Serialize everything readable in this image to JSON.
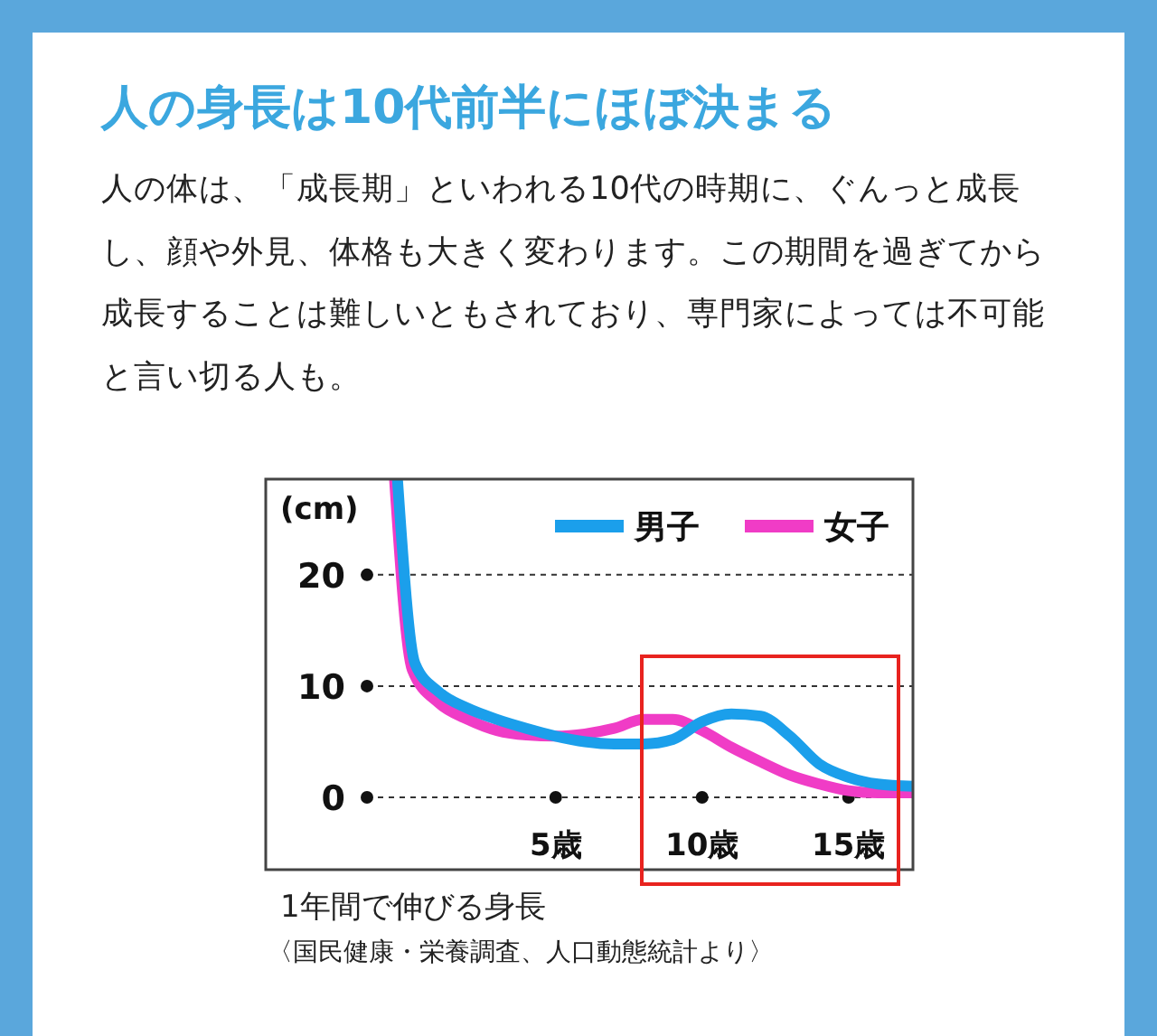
{
  "chart_data": {
    "type": "line",
    "title": "人の身長は10代前半にほぼ決まる",
    "subtitle": "人の体は、「成長期」といわれる10代の時期に、ぐんっと成長し、顔や外見、体格も大きく変わります。この期間を過ぎてから成長することは難しいともされており、専門家によっては不可能と言い切る人も。",
    "ylabel": "(cm)",
    "annotations": [
      "1年間で伸びる身長",
      "〈国民健康・栄養調査、人口動態統計より〉"
    ],
    "xlim": [
      -4.9,
      17.2
    ],
    "ylim": [
      -6.5,
      28.6
    ],
    "xticks": [
      {
        "value": 5,
        "label": "5歳"
      },
      {
        "value": 10,
        "label": "10歳"
      },
      {
        "value": 15,
        "label": "15歳"
      }
    ],
    "yticks": [
      0,
      10,
      20
    ],
    "grid": "y",
    "legend": "top right",
    "marker": "none",
    "line_style": "solid",
    "series": [
      {
        "name": "男子",
        "color": "#1b9feb",
        "x": [
          -0.4,
          0.2,
          1,
          2,
          3,
          4,
          5,
          6,
          7,
          8,
          9,
          10,
          11,
          12,
          13,
          14,
          15,
          16,
          17.2
        ],
        "values": [
          28.5,
          12,
          9.5,
          8,
          7,
          6.2,
          5.5,
          5,
          4.8,
          4.8,
          5.2,
          6.8,
          7.5,
          7.3,
          5.5,
          3,
          1.8,
          1.2,
          1
        ]
      },
      {
        "name": "女子",
        "color": "#f03cc6",
        "x": [
          -0.5,
          0.1,
          1,
          2,
          3,
          4,
          5,
          6,
          7,
          8,
          9,
          10,
          11,
          12,
          13,
          14,
          15,
          16,
          17.2
        ],
        "values": [
          28.5,
          11.5,
          8.5,
          7,
          6,
          5.6,
          5.5,
          5.7,
          6.2,
          7,
          7,
          6,
          4.5,
          3.2,
          2,
          1.2,
          0.6,
          0.4,
          0.4
        ]
      }
    ]
  }
}
